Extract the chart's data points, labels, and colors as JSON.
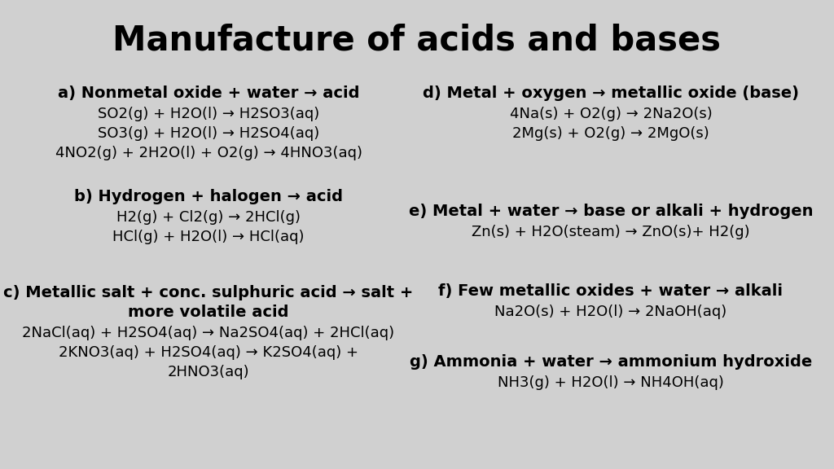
{
  "title": "Manufacture of acids and bases",
  "background_color": "#d0d0d0",
  "title_fontsize": 30,
  "title_fontweight": "bold",
  "text_color": "#000000",
  "heading_fontsize": 14,
  "line_fontsize": 13,
  "sections_left": [
    {
      "heading": "a) Nonmetal oxide + water → acid",
      "lines": [
        "SO2(g) + H2O(l) → H2SO3(aq)",
        "SO3(g) + H2O(l) → H2SO4(aq)",
        "4NO2(g) + 2H2O(l) + O2(g) → 4HNO3(aq)"
      ]
    },
    {
      "heading": "b) Hydrogen + halogen → acid",
      "lines": [
        "H2(g) + Cl2(g) → 2HCl(g)",
        "HCl(g) + H2O(l) → HCl(aq)"
      ]
    },
    {
      "heading": "c) Metallic salt + conc. sulphuric acid → salt +\nmore volatile acid",
      "lines": [
        "2NaCl(aq) + H2SO4(aq) → Na2SO4(aq) + 2HCl(aq)",
        "2KNO3(aq) + H2SO4(aq) → K2SO4(aq) +\n2HNO3(aq)"
      ]
    }
  ],
  "sections_right": [
    {
      "heading": "d) Metal + oxygen → metallic oxide (base)",
      "lines": [
        "4Na(s) + O2(g) → 2Na2O(s)",
        "2Mg(s) + O2(g) → 2MgO(s)"
      ]
    },
    {
      "heading": "e) Metal + water → base or alkali + hydrogen",
      "lines": [
        "Zn(s) + H2O(steam) → ZnO(s)+ H2(g)"
      ]
    },
    {
      "heading": "f) Few metallic oxides + water → alkali",
      "lines": [
        "Na2O(s) + H2O(l) → 2NaOH(aq)"
      ]
    },
    {
      "heading": "g) Ammonia + water → ammonium hydroxide",
      "lines": [
        "NH3(g) + H2O(l) → NH4OH(aq)"
      ]
    }
  ]
}
